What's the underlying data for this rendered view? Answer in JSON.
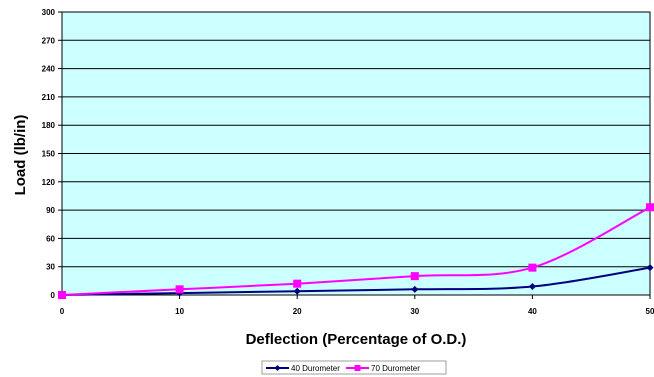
{
  "chart_data": {
    "type": "line",
    "title": "",
    "xlabel": "Deflection (Percentage of O.D.)",
    "ylabel": "Load (lb/in)",
    "x": [
      0,
      10,
      20,
      30,
      40,
      50
    ],
    "xlim": [
      0,
      50
    ],
    "ylim": [
      0,
      300
    ],
    "x_ticks": [
      "0",
      "10",
      "20",
      "30",
      "40",
      "50"
    ],
    "y_ticks": [
      "0",
      "30",
      "60",
      "90",
      "120",
      "150",
      "180",
      "210",
      "240",
      "270",
      "300"
    ],
    "grid": "horizontal",
    "legend_position": "bottom",
    "plot_background": "#ccffff",
    "series": [
      {
        "name": "40 Durometer",
        "values": [
          0,
          2,
          4,
          6,
          9,
          29
        ],
        "color": "#000080",
        "marker": "diamond"
      },
      {
        "name": "70 Durometer",
        "values": [
          0,
          6,
          12,
          20,
          29,
          93
        ],
        "color": "#ff00ff",
        "marker": "square"
      }
    ]
  }
}
